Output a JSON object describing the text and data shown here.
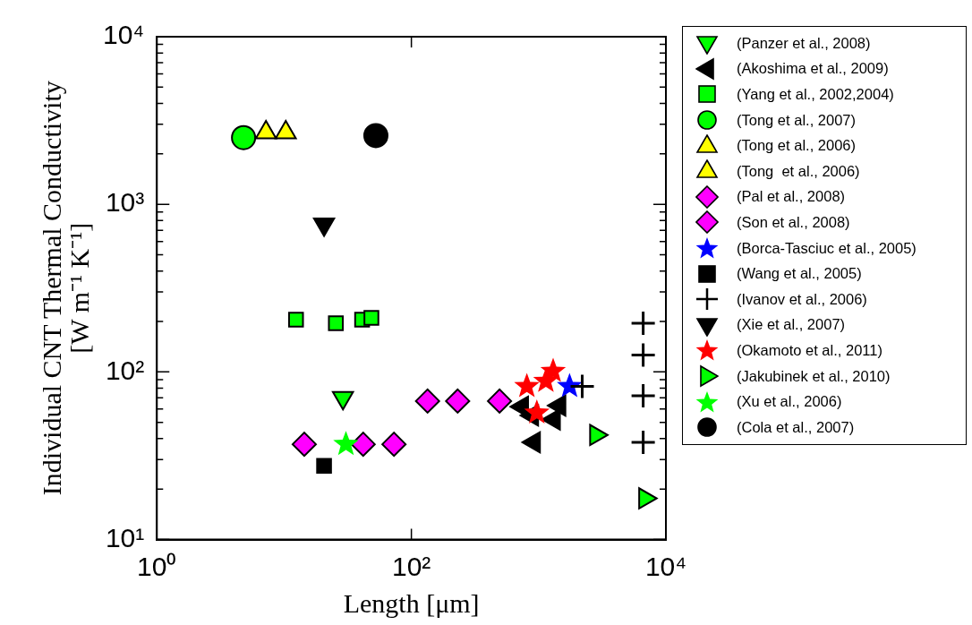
{
  "chart_data": {
    "type": "scatter",
    "xlabel": "Length [μm]",
    "ylabel": "Individual CNT Thermal Conductivity\n[W m⁻¹ K⁻¹]",
    "log": "xy",
    "legend": "right",
    "xlim": [
      1,
      10000
    ],
    "xticks": [
      {
        "value": 1,
        "label": "10⁰"
      },
      {
        "value": 100,
        "label": "10²"
      },
      {
        "value": 10000,
        "label": "10⁴"
      }
    ],
    "ylim": [
      10,
      10000
    ],
    "yticks": [
      {
        "value": 10,
        "label": "10¹"
      },
      {
        "value": 20,
        "label": null
      },
      {
        "value": 30,
        "label": null
      },
      {
        "value": 40,
        "label": null
      },
      {
        "value": 50,
        "label": null
      },
      {
        "value": 60,
        "label": null
      },
      {
        "value": 70,
        "label": null
      },
      {
        "value": 80,
        "label": null
      },
      {
        "value": 90,
        "label": null
      },
      {
        "value": 100,
        "label": "10²"
      },
      {
        "value": 200,
        "label": null
      },
      {
        "value": 300,
        "label": null
      },
      {
        "value": 400,
        "label": null
      },
      {
        "value": 500,
        "label": null
      },
      {
        "value": 600,
        "label": null
      },
      {
        "value": 700,
        "label": null
      },
      {
        "value": 800,
        "label": null
      },
      {
        "value": 900,
        "label": null
      },
      {
        "value": 1000,
        "label": "10³"
      },
      {
        "value": 2000,
        "label": null
      },
      {
        "value": 3000,
        "label": null
      },
      {
        "value": 4000,
        "label": null
      },
      {
        "value": 5000,
        "label": null
      },
      {
        "value": 6000,
        "label": null
      },
      {
        "value": 7000,
        "label": null
      },
      {
        "value": 8000,
        "label": null
      },
      {
        "value": 9000,
        "label": null
      },
      {
        "value": 10000,
        "label": "10⁴"
      }
    ],
    "series": [
      {
        "name": "(Panzer et al., 2008)",
        "color": "#00ff00",
        "marker": "triangle-down",
        "x": [
          29
        ],
        "values": [
          70
        ]
      },
      {
        "name": "(Akoshima et al., 2009)",
        "color": "#000000",
        "marker": "triangle-left",
        "x": [
          743,
          891,
          921,
          1460,
          1322
        ],
        "values": [
          62,
          55,
          38,
          63,
          52
        ]
      },
      {
        "name": "(Yang et al., 2002,2004)",
        "color": "#00ff00",
        "marker": "square",
        "x": [
          12.4,
          25.5,
          41,
          48.5
        ],
        "values": [
          205,
          195,
          205,
          210
        ]
      },
      {
        "name": "(Tong et al., 2007)",
        "color": "#00ff00",
        "marker": "circle",
        "x": [
          4.8
        ],
        "values": [
          2500
        ]
      },
      {
        "name": "(Tong et al., 2006)",
        "color": "#ffff00",
        "marker": "triangle",
        "x": [
          7.2
        ],
        "values": [
          2680
        ]
      },
      {
        "name": "(Tong  et al., 2006)",
        "color": "#ffff00",
        "marker": "triangle",
        "x": [
          10.3
        ],
        "values": [
          2680
        ]
      },
      {
        "name": "(Pal et al., 2008)",
        "color": "#ff00ff",
        "marker": "diamond",
        "x": [
          14.4,
          41.8,
          73
        ],
        "values": [
          37,
          37,
          37
        ]
      },
      {
        "name": "(Son et al., 2008)",
        "color": "#ff00ff",
        "marker": "diamond",
        "x": [
          134,
          231,
          493
        ],
        "values": [
          67,
          67,
          67
        ]
      },
      {
        "name": "(Borca-Tasciuc et al., 2005)",
        "color": "#0000ff",
        "marker": "star",
        "x": [
          1750
        ],
        "values": [
          82
        ]
      },
      {
        "name": "(Wang et al., 2005)",
        "color": "#000000",
        "marker": "square",
        "x": [
          20.6
        ],
        "values": [
          27.5
        ]
      },
      {
        "name": "(Ivanov et al., 2006)",
        "color": "#000000",
        "marker": "cross",
        "x": [
          2200,
          6630,
          6630,
          6630,
          6630
        ],
        "values": [
          82,
          195,
          126,
          72,
          38
        ]
      },
      {
        "name": "(Xie et al., 2007)",
        "color": "#000000",
        "marker": "triangle-down",
        "x": [
          20.6
        ],
        "values": [
          760
        ]
      },
      {
        "name": "(Okamoto et al., 2011)",
        "color": "#ff0000",
        "marker": "star",
        "x": [
          808,
          1140,
          1300,
          968
        ],
        "values": [
          82,
          88,
          101,
          57
        ]
      },
      {
        "name": "(Jakubinek et al., 2010)",
        "color": "#00ff00",
        "marker": "triangle-right",
        "x": [
          2820,
          6850
        ],
        "values": [
          42,
          17.6
        ]
      },
      {
        "name": "(Xu et al., 2006)",
        "color": "#00ff00",
        "marker": "star",
        "x": [
          30.6
        ],
        "values": [
          37
        ]
      },
      {
        "name": "(Cola et al., 2007)",
        "color": "#000000",
        "marker": "circle",
        "x": [
          52.6
        ],
        "values": [
          2570
        ]
      }
    ]
  }
}
